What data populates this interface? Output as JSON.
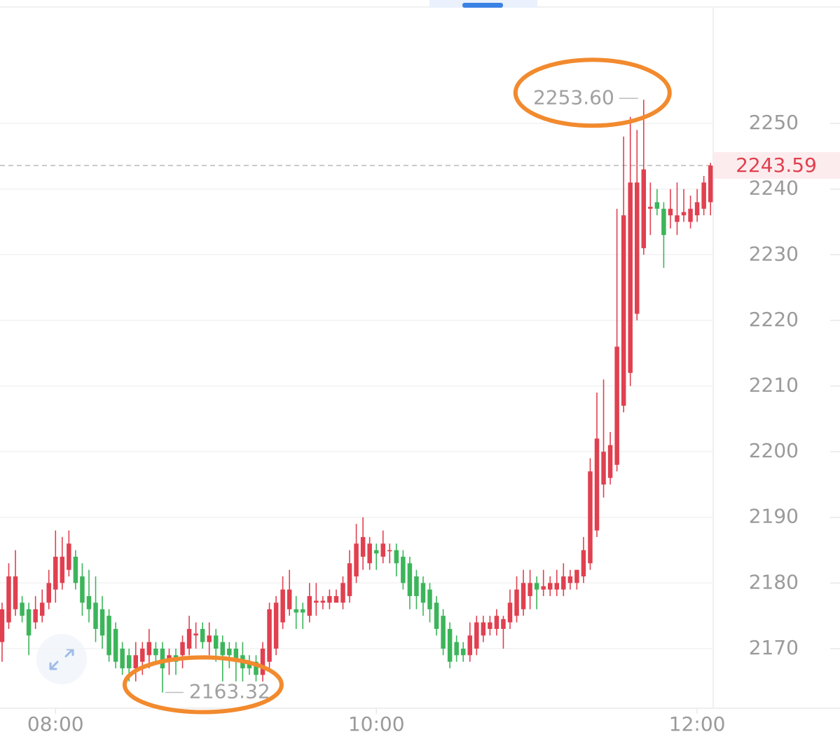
{
  "chart_data": {
    "type": "candlestick",
    "categories": [
      null,
      null,
      null,
      null,
      null,
      null,
      null,
      null,
      null,
      null,
      null,
      null,
      null,
      null,
      null,
      null,
      null,
      null,
      null,
      null,
      null,
      null,
      null,
      null,
      null,
      null,
      null,
      null,
      null,
      null,
      null,
      null,
      null,
      null,
      null,
      null,
      null,
      null,
      null,
      null,
      null,
      null,
      null,
      null,
      null,
      null,
      null,
      null,
      null,
      null,
      null,
      null,
      null,
      null,
      null,
      null,
      null,
      null,
      null,
      null,
      null,
      null,
      null,
      null,
      null,
      null,
      null,
      null,
      null,
      null,
      null,
      null,
      null,
      null,
      null,
      null,
      null,
      null,
      null,
      null,
      null,
      null,
      null,
      null,
      null,
      null,
      null,
      null,
      null,
      null,
      null,
      null,
      null,
      null,
      null,
      null,
      null,
      null,
      null,
      null,
      null,
      null,
      null,
      null,
      null,
      null,
      null
    ],
    "open": [
      2171,
      2174,
      2176,
      2177,
      2176,
      2174,
      2175,
      2177,
      2179,
      2180,
      2182,
      2184,
      2181,
      2178,
      2177,
      2176,
      2175,
      2173,
      2170,
      2169,
      2167,
      2168,
      2169,
      2170,
      2170,
      2168,
      2169,
      2169,
      2170,
      2172,
      2173,
      2171,
      2172,
      2171,
      2170,
      2170,
      2169,
      2168,
      2168,
      2166,
      2168,
      2170,
      2174,
      2176,
      2176,
      2176,
      2175,
      2177,
      2177,
      2177,
      2177,
      2177,
      2178,
      2181,
      2184,
      2183,
      2185,
      2184,
      2185,
      2185,
      2184,
      2183,
      2181,
      2180,
      2179,
      2177,
      2175,
      2173,
      2171,
      2170,
      2169,
      2170,
      2172,
      2173,
      2173,
      2173,
      2174,
      2175,
      2176,
      2178,
      2180,
      2179,
      2179,
      2179,
      2179,
      2180,
      2180,
      2181,
      2183,
      2188,
      2195,
      2196,
      2198,
      2207,
      2212,
      2221,
      2231,
      2237,
      2238,
      2237,
      2236,
      2235,
      2236,
      2235,
      2236,
      2237,
      2238
    ],
    "high": [
      2177,
      2183,
      2185,
      2178,
      2177,
      2178,
      2179,
      2182,
      2188,
      2187,
      2188,
      2185,
      2183,
      2182,
      2181,
      2178,
      2176,
      2174,
      2171,
      2170,
      2171,
      2171,
      2173,
      2171,
      2171,
      2170,
      2170,
      2172,
      2175,
      2174,
      2174,
      2174,
      2173,
      2172,
      2171,
      2171,
      2171,
      2169,
      2169,
      2171,
      2177,
      2178,
      2181,
      2182,
      2178,
      2177,
      2180,
      2180,
      2178,
      2179,
      2179,
      2181,
      2185,
      2189,
      2190,
      2187,
      2186,
      2188,
      2186,
      2186,
      2185,
      2184,
      2182,
      2181,
      2180,
      2178,
      2176,
      2174,
      2172,
      2171,
      2174,
      2175,
      2175,
      2175,
      2176,
      2175,
      2179,
      2181,
      2182,
      2182,
      2181,
      2182,
      2181,
      2182,
      2183,
      2182,
      2182,
      2187,
      2199,
      2209,
      2211,
      2203,
      2237,
      2248,
      2251,
      2249,
      2253.6,
      2241,
      2240,
      2238,
      2240,
      2241,
      2240,
      2239,
      2240,
      2242,
      2244
    ],
    "low": [
      2168,
      2173,
      2175,
      2174,
      2169,
      2173,
      2174,
      2176,
      2177,
      2179,
      2181,
      2179,
      2175,
      2174,
      2171,
      2170,
      2168,
      2167,
      2166,
      2165,
      2165,
      2166,
      2167,
      2168,
      2163.32,
      2166,
      2166,
      2167,
      2169,
      2170,
      2170,
      2169,
      2168,
      2165,
      2167,
      2165,
      2165,
      2166,
      2165,
      2165,
      2167,
      2169,
      2173,
      2175,
      2173,
      2173,
      2174,
      2175,
      2176,
      2176,
      2177,
      2176,
      2177,
      2180,
      2182,
      2182,
      2182,
      2183,
      2183,
      2181,
      2179,
      2176,
      2176,
      2175,
      2174,
      2172,
      2169,
      2167,
      2168,
      2168,
      2168,
      2169,
      2171,
      2172,
      2172,
      2170,
      2173,
      2174,
      2175,
      2176,
      2176,
      2178,
      2178,
      2178,
      2178,
      2179,
      2179,
      2180,
      2182,
      2187,
      2193,
      2195,
      2197,
      2206,
      2210,
      2220,
      2230,
      2233,
      2236,
      2228,
      2234,
      2233,
      2235,
      2234,
      2235,
      2236,
      2236
    ],
    "close": [
      2176,
      2181,
      2181,
      2175,
      2172,
      2176,
      2177,
      2180,
      2184,
      2184,
      2186,
      2180,
      2177,
      2176,
      2173,
      2172,
      2169,
      2168,
      2167,
      2167,
      2169,
      2170,
      2171,
      2169,
      2167,
      2169,
      2168,
      2171,
      2173,
      2172.3,
      2171,
      2172,
      2170,
      2169,
      2169,
      2168,
      2167,
      2167,
      2166,
      2170,
      2176,
      2177,
      2179,
      2179,
      2175.5,
      2175.5,
      2178,
      2177.3,
      2177.3,
      2178,
      2178,
      2180,
      2183,
      2186,
      2187,
      2186,
      2184.5,
      2186,
      2185,
      2183,
      2180,
      2178,
      2178,
      2177,
      2176,
      2173,
      2170,
      2168,
      2169,
      2169,
      2172,
      2174,
      2174,
      2174,
      2175,
      2174.5,
      2177,
      2179,
      2180,
      2180,
      2179,
      2179.5,
      2180,
      2180,
      2181,
      2181,
      2182,
      2185,
      2197,
      2202,
      2200,
      2201,
      2216,
      2236,
      2241,
      2241,
      2243,
      2237.3,
      2237,
      2233,
      2237,
      2236,
      2236.5,
      2237,
      2238,
      2241,
      2243.59
    ],
    "up_color": "#e0404f",
    "down_color": "#3cb55a",
    "xlim": [
      -0.31,
      106.4
    ],
    "xticks": [
      {
        "value": 8,
        "label": "08:00"
      },
      {
        "value": 56,
        "label": "10:00"
      },
      {
        "value": 104,
        "label": "12:00"
      }
    ],
    "ylim": [
      2160.92,
      2268.8
    ],
    "yticks": [
      2170,
      2180,
      2190,
      2200,
      2210,
      2220,
      2230,
      2240,
      2250
    ],
    "grid": true,
    "annotations": [
      {
        "label": "2253.60",
        "value": 2253.6,
        "kind": "high"
      },
      {
        "label": "2163.32",
        "value": 2163.32,
        "kind": "low"
      }
    ],
    "last_price": {
      "label": "2243.59",
      "value": 2243.59
    }
  }
}
